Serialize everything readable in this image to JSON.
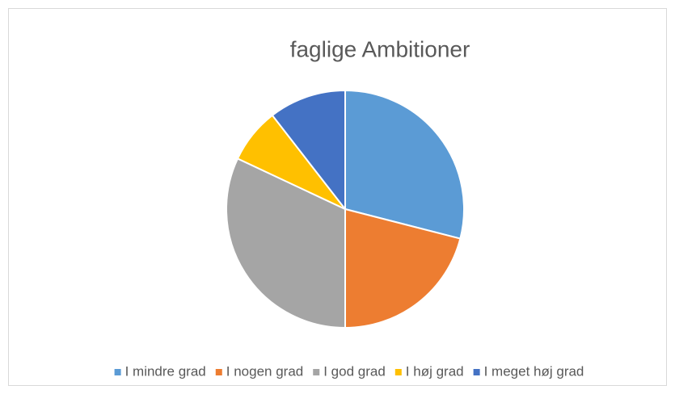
{
  "chart_data": {
    "type": "pie",
    "title": "faglige Ambitioner",
    "categories": [
      "I mindre grad",
      "I nogen grad",
      "I god grad",
      "I høj grad",
      "I meget høj grad"
    ],
    "values": [
      29,
      21,
      32,
      7.5,
      10.5
    ],
    "colors": [
      "#5b9bd5",
      "#ed7d31",
      "#a5a5a5",
      "#ffc000",
      "#4472c4"
    ],
    "legend": "bottom"
  }
}
